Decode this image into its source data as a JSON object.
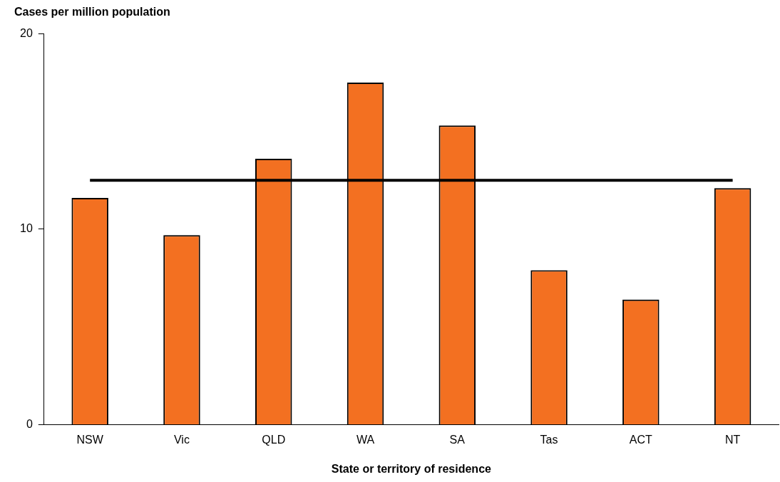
{
  "chart_data": {
    "type": "bar",
    "ylabel": "Cases per million population",
    "xlabel": "State or territory of residence",
    "categories": [
      "NSW",
      "Vic",
      "QLD",
      "WA",
      "SA",
      "Tas",
      "ACT",
      "NT"
    ],
    "values": [
      11.6,
      9.7,
      13.6,
      17.5,
      15.3,
      7.9,
      6.4,
      12.1
    ],
    "color": "#f37021",
    "ylim": [
      0,
      20
    ],
    "yticks": [
      0,
      10,
      20
    ],
    "grid": false,
    "legend": false,
    "ref_lines": [
      {
        "axis": "y",
        "value": 12.5,
        "color": "#000000"
      }
    ]
  }
}
